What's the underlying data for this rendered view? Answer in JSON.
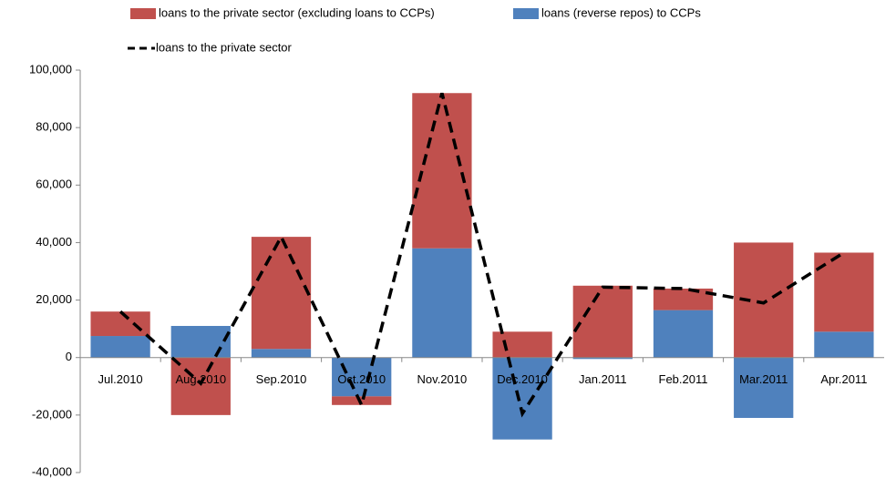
{
  "chart_data": {
    "type": "bar",
    "stacked": true,
    "categories": [
      "Jul.2010",
      "Aug.2010",
      "Sep.2010",
      "Oct.2010",
      "Nov.2010",
      "Dec.2010",
      "Jan.2011",
      "Feb.2011",
      "Mar.2011",
      "Apr.2011"
    ],
    "series": [
      {
        "name": "loans to the private sector (excluding loans to CCPs)",
        "color": "#c0504d",
        "values": [
          8500,
          -20000,
          39000,
          -3000,
          54000,
          9000,
          25000,
          7500,
          40000,
          27500
        ]
      },
      {
        "name": "loans (reverse repos) to CCPs",
        "color": "#4f81bd",
        "values": [
          7500,
          11000,
          3000,
          -13500,
          38000,
          -28500,
          -500,
          16500,
          -21000,
          9000
        ]
      },
      {
        "name": "loans to the private sector",
        "type": "line",
        "color": "#000000",
        "values": [
          16000,
          -9000,
          42000,
          -16500,
          92000,
          -19500,
          24500,
          24000,
          19000,
          36500
        ]
      }
    ],
    "ylim": [
      -40000,
      100000
    ],
    "yticks": [
      {
        "value": -40000,
        "label": "-40,000"
      },
      {
        "value": -20000,
        "label": "-20,000"
      },
      0,
      {
        "value": 20000,
        "label": "20,000"
      },
      {
        "value": 40000,
        "label": "40,000"
      },
      {
        "value": 60000,
        "label": "60,000"
      },
      {
        "value": 80000,
        "label": "80,000"
      },
      {
        "value": 100000,
        "label": "100,000"
      }
    ],
    "grid": false
  }
}
